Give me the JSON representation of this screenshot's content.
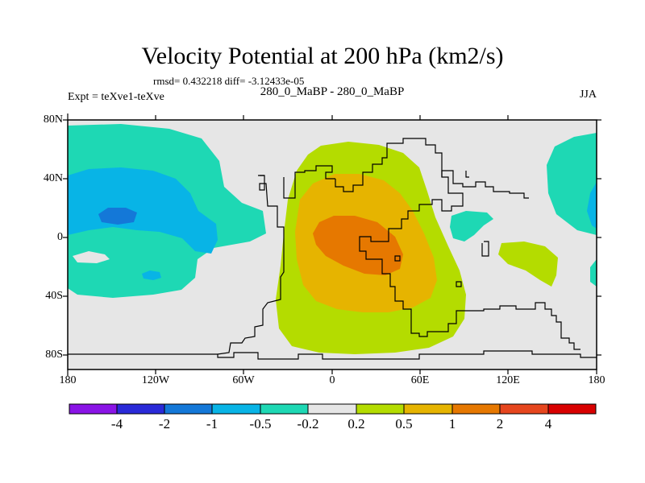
{
  "title": "Velocity Potential at 200 hPa (km2/s)",
  "stats": "rmsd= 0.432218 diff= -3.12433e-05",
  "left_label": "Expt = teXve1-teXve",
  "center_label": "280_0_MaBP - 280_0_MaBP",
  "right_label": "JJA",
  "lat_labels": [
    "80N",
    "40N",
    "0",
    "40S",
    "80S"
  ],
  "lon_labels": [
    "180",
    "120W",
    "60W",
    "0",
    "60E",
    "120E",
    "180"
  ],
  "colorbar": {
    "labels": [
      "-4",
      "-2",
      "-1",
      "-0.5",
      "-0.2",
      "0.2",
      "0.5",
      "1",
      "2",
      "4"
    ],
    "colors": [
      "#8a14e6",
      "#2a2ad8",
      "#1478d8",
      "#08b4e6",
      "#1ed8b4",
      "#e6e6e6",
      "#b4dc00",
      "#e6b400",
      "#e67800",
      "#e6461e",
      "#d80000"
    ]
  },
  "palette": {
    "neutral": "#e6e6e6",
    "neg_02": "#1ed8b4",
    "neg_05": "#08b4e6",
    "neg_1": "#1478d8",
    "pos_02": "#b4dc00",
    "pos_05": "#e6b400",
    "pos_1": "#e67800"
  }
}
